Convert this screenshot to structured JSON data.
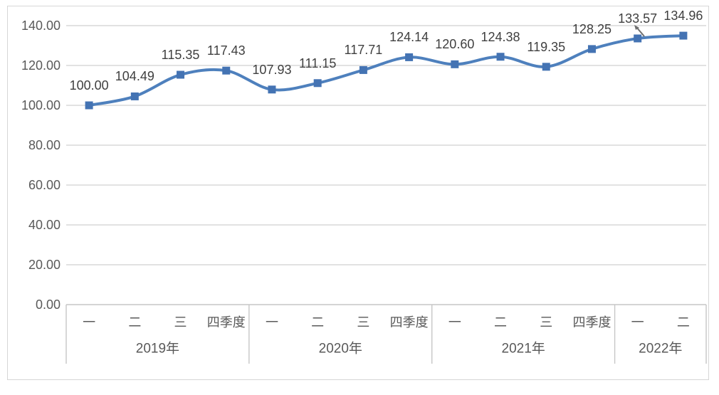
{
  "chart_data": {
    "type": "line",
    "title": "",
    "smooth": true,
    "marker": "square",
    "legend": "none",
    "grid": true,
    "ylim": [
      0,
      140
    ],
    "y_tick_step": 20,
    "y_ticks": [
      "0.00",
      "20.00",
      "40.00",
      "60.00",
      "80.00",
      "100.00",
      "120.00",
      "140.00"
    ],
    "values": [
      100.0,
      104.49,
      115.35,
      117.43,
      107.93,
      111.15,
      117.71,
      124.14,
      120.6,
      124.38,
      119.35,
      128.25,
      133.57,
      134.96
    ],
    "data_labels": [
      "100.00",
      "104.49",
      "115.35",
      "117.43",
      "107.93",
      "111.15",
      "117.71",
      "124.14",
      "120.60",
      "124.38",
      "119.35",
      "128.25",
      "133.57",
      "134.96"
    ],
    "quarter_labels": [
      "一",
      "二",
      "三",
      "四季度",
      "一",
      "二",
      "三",
      "四季度",
      "一",
      "二",
      "三",
      "四季度",
      "一",
      "二"
    ],
    "year_groups": [
      {
        "label": "2019年",
        "count": 4
      },
      {
        "label": "2020年",
        "count": 4
      },
      {
        "label": "2021年",
        "count": 4
      },
      {
        "label": "2022年",
        "count": 2
      }
    ],
    "colors": {
      "line": "#4e80bd",
      "marker": "#4473b3",
      "gridline": "#d9d9d9",
      "axis_line": "#c6c6c6",
      "tick_text": "#595959",
      "data_label_text": "#3f3f3f",
      "cursor": "#6f6f6f"
    }
  }
}
